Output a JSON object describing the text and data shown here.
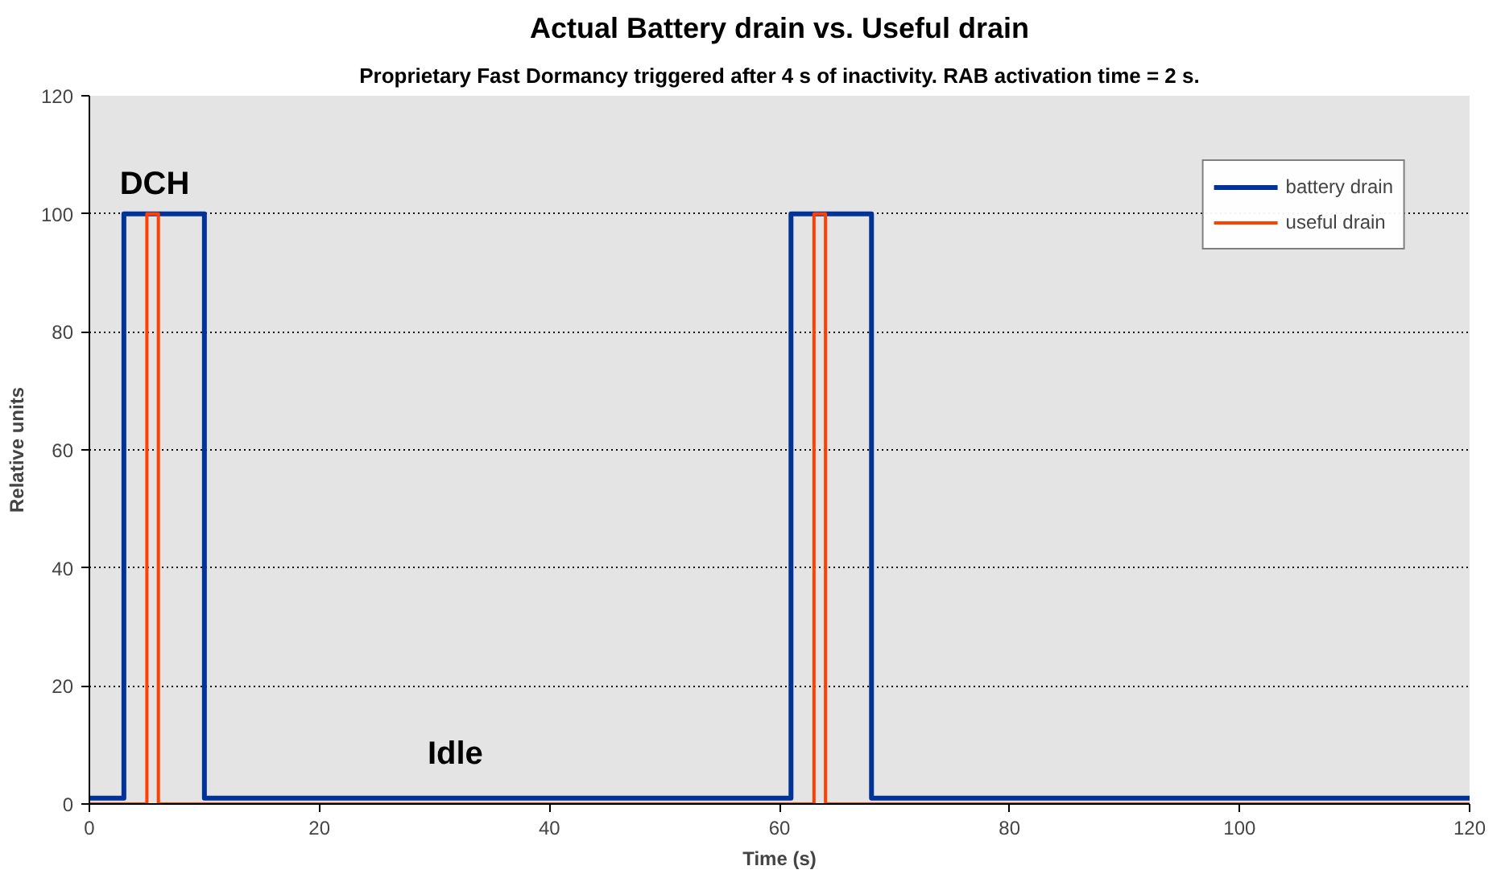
{
  "chart_data": {
    "type": "line",
    "title": "Actual Battery drain vs. Useful drain",
    "subtitle": "Proprietary Fast Dormancy triggered after 4 s of inactivity. RAB activation time = 2 s.",
    "xlabel": "Time (s)",
    "ylabel": "Relative units",
    "series": [
      {
        "name": "battery drain",
        "color": "#003399",
        "x": [
          0,
          3,
          3,
          10,
          10,
          61,
          61,
          68,
          68,
          120
        ],
        "values": [
          1,
          1,
          100,
          100,
          1,
          1,
          100,
          100,
          1,
          1
        ]
      },
      {
        "name": "useful drain",
        "color": "#ff4000",
        "x": [
          0,
          5,
          5,
          6,
          6,
          63,
          63,
          64,
          64,
          120
        ],
        "values": [
          0,
          0,
          100,
          100,
          0,
          0,
          100,
          100,
          0,
          0
        ]
      }
    ],
    "annotations": [
      "DCH",
      "Idle"
    ],
    "xlim": [
      0,
      120
    ],
    "xticks": [
      0,
      20,
      40,
      60,
      80,
      100,
      120
    ],
    "ylim": [
      0,
      120
    ],
    "yticks": [
      0,
      20,
      40,
      60,
      80,
      100,
      120
    ],
    "grid": "y",
    "legend": "top right",
    "marker": "none",
    "line_style": "solid"
  }
}
